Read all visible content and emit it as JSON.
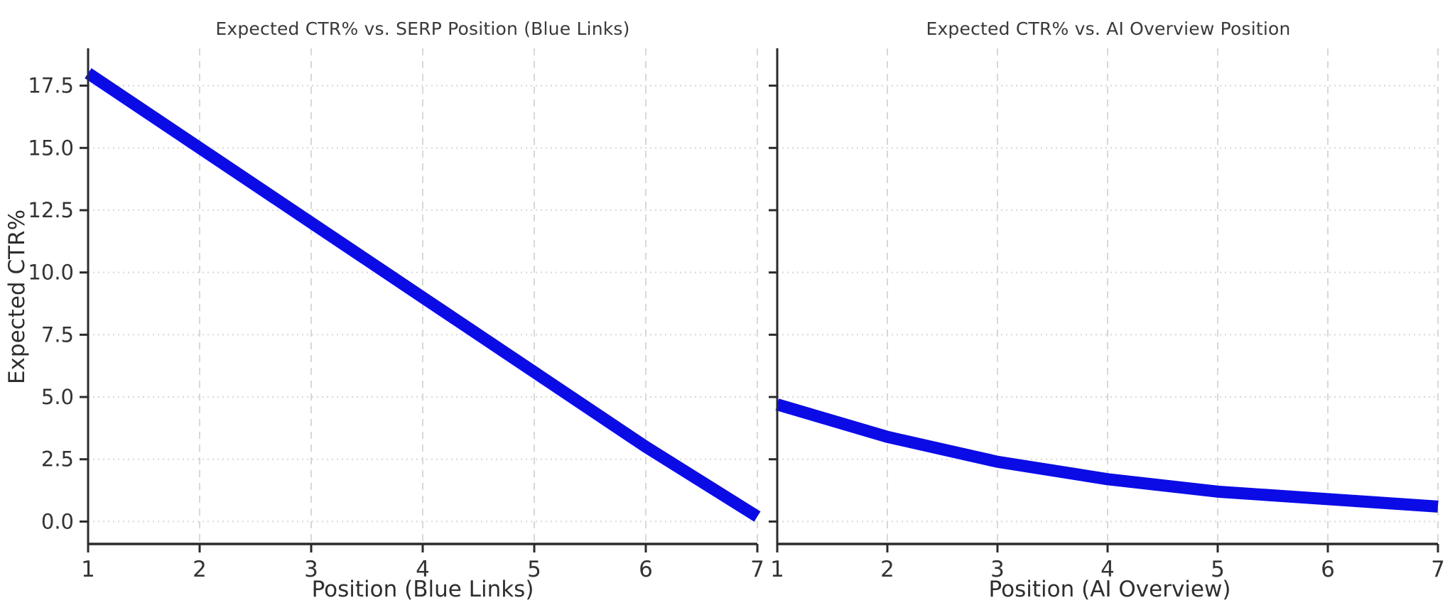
{
  "figure": {
    "background": "#ffffff",
    "shared_ylabel": "Expected CTR%"
  },
  "style": {
    "line_color": "#0b0be6",
    "grid_color": "#d8d8d8",
    "axis_color": "#2b2b2b",
    "tick_label_color": "#333333",
    "title_color": "#3a3a3a",
    "line_width": 17
  },
  "chart_data": [
    {
      "type": "line",
      "title": "Expected CTR% vs. SERP Position (Blue Links)",
      "xlabel": "Position (Blue Links)",
      "ylabel": "Expected CTR%",
      "x": [
        1,
        2,
        3,
        4,
        5,
        6,
        7
      ],
      "values": [
        18.0,
        15.0,
        12.0,
        9.0,
        6.0,
        3.0,
        0.2
      ],
      "xlim": [
        1,
        7
      ],
      "ylim": [
        -0.9,
        19.0
      ],
      "xticks": [
        1,
        2,
        3,
        4,
        5,
        6,
        7
      ],
      "yticks": [
        0.0,
        2.5,
        5.0,
        7.5,
        10.0,
        12.5,
        15.0,
        17.5
      ],
      "ytick_labels": [
        "0.0",
        "2.5",
        "5.0",
        "7.5",
        "10.0",
        "12.5",
        "15.0",
        "17.5"
      ],
      "grid": true,
      "legend": false,
      "show_ytick_labels": true
    },
    {
      "type": "line",
      "title": "Expected CTR% vs. AI Overview Position",
      "xlabel": "Position (AI Overview)",
      "ylabel": "Expected CTR%",
      "x": [
        1,
        2,
        3,
        4,
        5,
        6,
        7
      ],
      "values": [
        4.7,
        3.4,
        2.4,
        1.7,
        1.2,
        0.9,
        0.6
      ],
      "xlim": [
        1,
        7
      ],
      "ylim": [
        -0.9,
        19.0
      ],
      "xticks": [
        1,
        2,
        3,
        4,
        5,
        6,
        7
      ],
      "yticks": [
        0.0,
        2.5,
        5.0,
        7.5,
        10.0,
        12.5,
        15.0,
        17.5
      ],
      "ytick_labels": [
        "0.0",
        "2.5",
        "5.0",
        "7.5",
        "10.0",
        "12.5",
        "15.0",
        "17.5"
      ],
      "grid": true,
      "legend": false,
      "show_ytick_labels": false
    }
  ]
}
